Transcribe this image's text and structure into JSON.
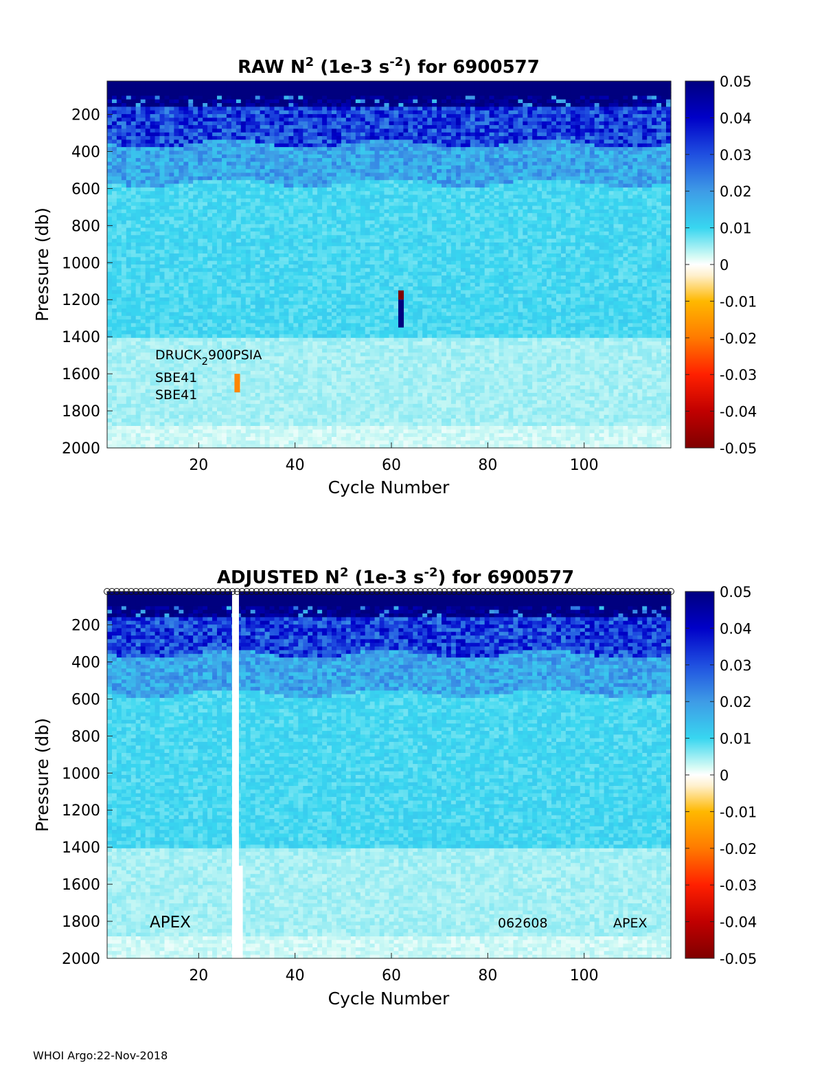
{
  "footer": "WHOI Argo:22-Nov-2018",
  "chart_data": [
    {
      "type": "heatmap",
      "title": {
        "prefix": "RAW N",
        "sup1": "2",
        "middle": " (1e-3 s",
        "sup2": "-2",
        "suffix": ") for 6900577"
      },
      "xlabel": "Cycle Number",
      "ylabel": "Pressure (db)",
      "xlim": [
        1,
        118
      ],
      "ylim": [
        20,
        2000
      ],
      "y_reversed": true,
      "xticks": [
        20,
        40,
        60,
        80,
        100
      ],
      "yticks": [
        200,
        400,
        600,
        800,
        1000,
        1200,
        1400,
        1600,
        1800,
        2000
      ],
      "colorbar": {
        "range": [
          -0.05,
          0.05
        ],
        "ticks": [
          "0.05",
          "0.04",
          "0.03",
          "0.02",
          "0.01",
          "0",
          "-0.01",
          "-0.02",
          "-0.03",
          "-0.04",
          "-0.05"
        ]
      },
      "annotations": [
        {
          "text": "DRUCK",
          "sub": "2",
          "text2": "900PSIA",
          "cycle": 11,
          "pressure": 1490
        },
        {
          "text": "SBE41",
          "cycle": 11,
          "pressure": 1595
        },
        {
          "text": "SBE41",
          "cycle": 11,
          "pressure": 1695
        }
      ],
      "anomalies": [
        {
          "cycle": 62,
          "p_from": 1150,
          "p_to": 1200,
          "value": -0.05
        },
        {
          "cycle": 62,
          "p_from": 1200,
          "p_to": 1350,
          "value": 0.05
        },
        {
          "cycle": 28,
          "p_from": 1600,
          "p_to": 1700,
          "value": -0.018
        }
      ],
      "missing_cycles": [],
      "near_surface_positive_value": 0.05,
      "thermocline_pressure": 350
    },
    {
      "type": "heatmap",
      "title": {
        "prefix": "ADJUSTED N",
        "sup1": "2",
        "middle": " (1e-3 s",
        "sup2": "-2",
        "suffix": ") for 6900577"
      },
      "xlabel": "Cycle Number",
      "ylabel": "Pressure (db)",
      "xlim": [
        1,
        118
      ],
      "ylim": [
        20,
        2000
      ],
      "y_reversed": true,
      "xticks": [
        20,
        40,
        60,
        80,
        100
      ],
      "yticks": [
        200,
        400,
        600,
        800,
        1000,
        1200,
        1400,
        1600,
        1800,
        2000
      ],
      "colorbar": {
        "range": [
          -0.05,
          0.05
        ],
        "ticks": [
          "0.05",
          "0.04",
          "0.03",
          "0.02",
          "0.01",
          "0",
          "-0.01",
          "-0.02",
          "-0.03",
          "-0.04",
          "-0.05"
        ]
      },
      "annotations": [
        {
          "text": "APEX",
          "cycle": 10,
          "pressure": 1800,
          "large": true
        },
        {
          "text": "062608",
          "cycle": 82,
          "pressure": 1800
        },
        {
          "text": "APEX",
          "cycle": 107,
          "pressure": 1800
        }
      ],
      "anomalies": [],
      "missing_cycles": [
        {
          "cycle": 27.5,
          "p_from": 20,
          "p_to": 2000
        },
        {
          "cycle": 28.3,
          "p_from": 1500,
          "p_to": 2000
        }
      ],
      "surface_marker_row": true,
      "thermocline_pressure": 350
    }
  ]
}
